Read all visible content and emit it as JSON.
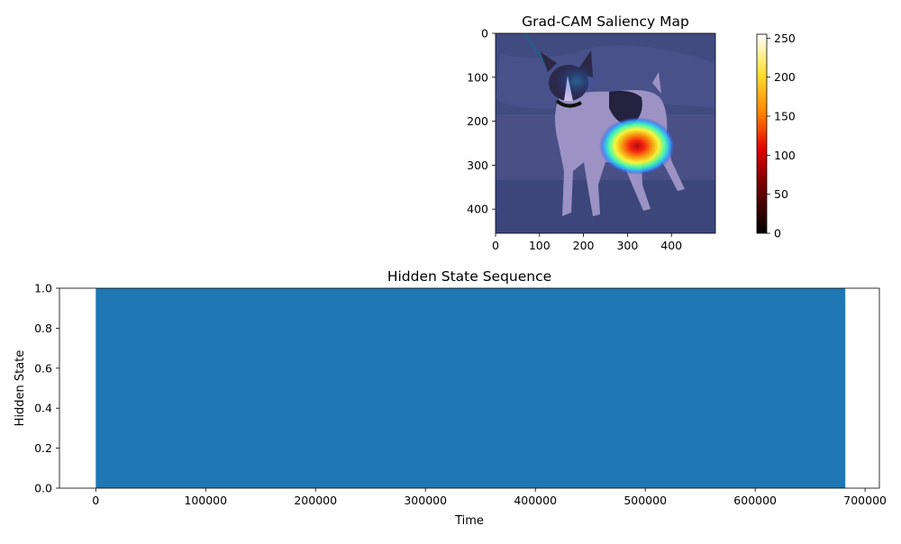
{
  "chart_data": [
    {
      "type": "heatmap",
      "title": "Grad-CAM Saliency Map",
      "x_ticks": [
        0,
        100,
        200,
        300,
        400
      ],
      "y_ticks": [
        0,
        100,
        200,
        300,
        400
      ],
      "xlim": [
        0,
        500
      ],
      "ylim": [
        455,
        0
      ],
      "colorbar": {
        "ticks": [
          0,
          50,
          100,
          150,
          200,
          250
        ],
        "range": [
          0,
          255
        ],
        "colormap": "hot",
        "colors": [
          "#000000",
          "#8b0000",
          "#ff2000",
          "#ff9a00",
          "#ffee20",
          "#ffffff"
        ]
      },
      "overlay_colormap": "jet",
      "hotspot": {
        "x": 320,
        "y": 255,
        "value": 255
      }
    },
    {
      "type": "bar",
      "title": "Hidden State Sequence",
      "xlabel": "Time",
      "ylabel": "Hidden State",
      "xlim": [
        -33000,
        713000
      ],
      "ylim": [
        0,
        1
      ],
      "x_ticks": [
        0,
        100000,
        200000,
        300000,
        400000,
        500000,
        600000,
        700000
      ],
      "y_ticks": [
        "0.0",
        "0.2",
        "0.4",
        "0.6",
        "0.8",
        "1.0"
      ],
      "bar": {
        "start": 0,
        "end": 682000,
        "value": 1.0
      },
      "color": "#1f77b4"
    }
  ]
}
